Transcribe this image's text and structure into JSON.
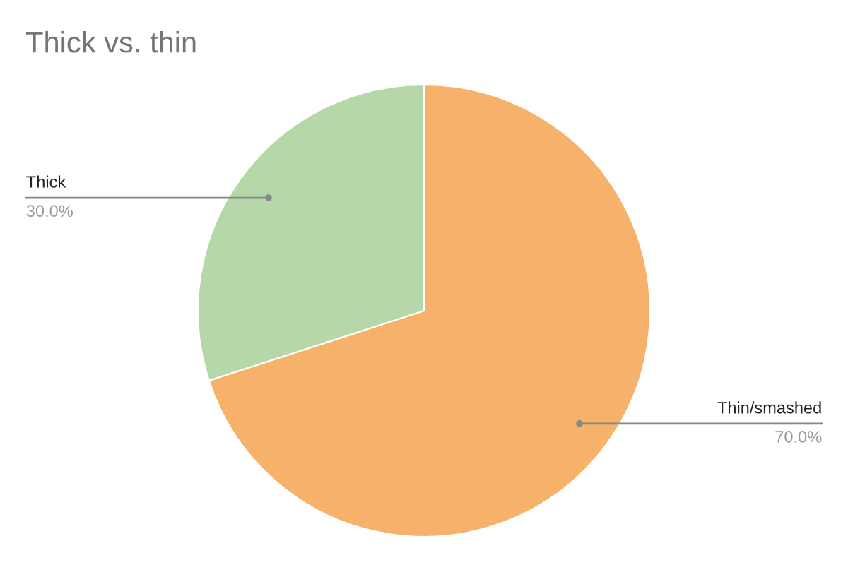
{
  "chart_data": {
    "type": "pie",
    "title": "Thick vs. thin",
    "categories": [
      "Thin/smashed",
      "Thick"
    ],
    "values": [
      70,
      30
    ],
    "colors": [
      "#f6b26b",
      "#b6d7a8"
    ],
    "value_labels": [
      "70.0%",
      "30.0%"
    ],
    "legend": false
  }
}
